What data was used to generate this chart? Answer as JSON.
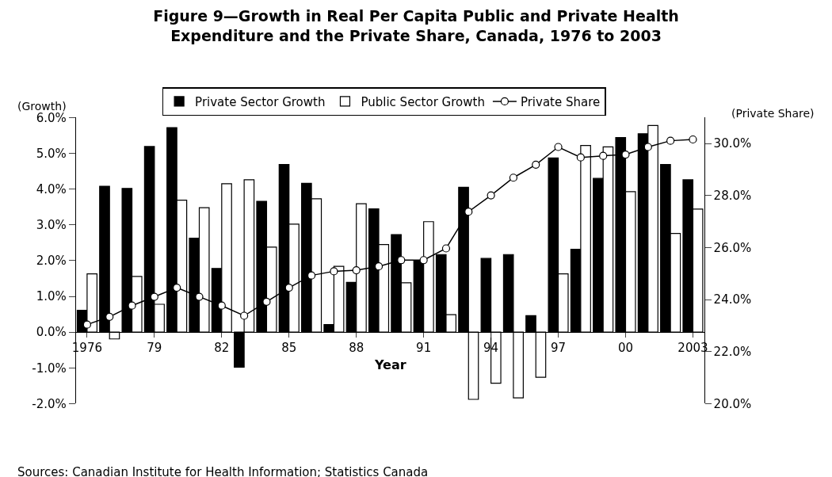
{
  "chart_data": {
    "type": "bar",
    "title": "Figure 9—Growth in Real Per Capita Public and Private Health Expenditure and the Private Share, Canada, 1976 to 2003",
    "xlabel": "Year",
    "ylabel": "(Growth)",
    "y2label": "(Private Share)",
    "annotations": [
      "Sources: Canadian Institute for Health Information; Statistics Canada"
    ],
    "categories": [
      "1976",
      null,
      null,
      "79",
      null,
      null,
      "82",
      null,
      null,
      "85",
      null,
      null,
      "88",
      null,
      null,
      "91",
      null,
      null,
      "94",
      null,
      null,
      "97",
      null,
      null,
      "00",
      null,
      null,
      "2003"
    ],
    "series": [
      {
        "name": "Private Sector Growth",
        "color": "#000000",
        "values": [
          0.61,
          4.08,
          4.02,
          5.19,
          5.72,
          2.63,
          1.78,
          -0.98,
          3.66,
          4.69,
          4.16,
          0.21,
          1.39,
          3.45,
          2.73,
          1.99,
          2.17,
          4.05,
          2.06,
          2.17,
          0.46,
          4.87,
          2.32,
          4.3,
          5.44,
          5.55,
          4.69,
          4.26
        ]
      },
      {
        "name": "Public Sector Growth",
        "color": "#ffffff",
        "values": [
          1.63,
          -0.19,
          1.56,
          0.78,
          3.69,
          3.48,
          4.15,
          4.26,
          2.38,
          3.02,
          3.73,
          1.84,
          3.59,
          2.45,
          1.38,
          3.09,
          0.49,
          -1.88,
          -1.43,
          -1.84,
          -1.26,
          1.63,
          5.22,
          5.18,
          3.93,
          5.78,
          2.76,
          3.44
        ]
      },
      {
        "name": "Private Share",
        "type": "line",
        "axis": "y2",
        "color": "#000000",
        "marker": "circle",
        "values": [
          23.04,
          23.34,
          23.77,
          24.11,
          24.46,
          24.11,
          23.77,
          23.38,
          23.92,
          24.46,
          24.93,
          25.09,
          25.13,
          25.28,
          25.52,
          25.52,
          25.97,
          27.38,
          28.01,
          28.69,
          29.19,
          29.87,
          29.47,
          29.53,
          29.58,
          29.87,
          30.11,
          30.16
        ]
      }
    ],
    "ylim": [
      -2,
      6
    ],
    "yticks": [
      {
        "value": -2,
        "label": "-2.0%"
      },
      {
        "value": -1,
        "label": "-1.0%"
      },
      {
        "value": 0,
        "label": "0.0%"
      },
      {
        "value": 1,
        "label": "1.0%"
      },
      {
        "value": 2,
        "label": "2.0%"
      },
      {
        "value": 3,
        "label": "3.0%"
      },
      {
        "value": 4,
        "label": "4.0%"
      },
      {
        "value": 5,
        "label": "5.0%"
      },
      {
        "value": 6,
        "label": "6.0%"
      }
    ],
    "y2lim": [
      20,
      31
    ],
    "y2ticks": [
      {
        "value": 20,
        "label": "20.0%"
      },
      {
        "value": 22,
        "label": "22.0%"
      },
      {
        "value": 24,
        "label": "24.0%"
      },
      {
        "value": 26,
        "label": "26.0%"
      },
      {
        "value": 28,
        "label": "28.0%"
      },
      {
        "value": 30,
        "label": "30.0%"
      }
    ],
    "legend": "top"
  }
}
